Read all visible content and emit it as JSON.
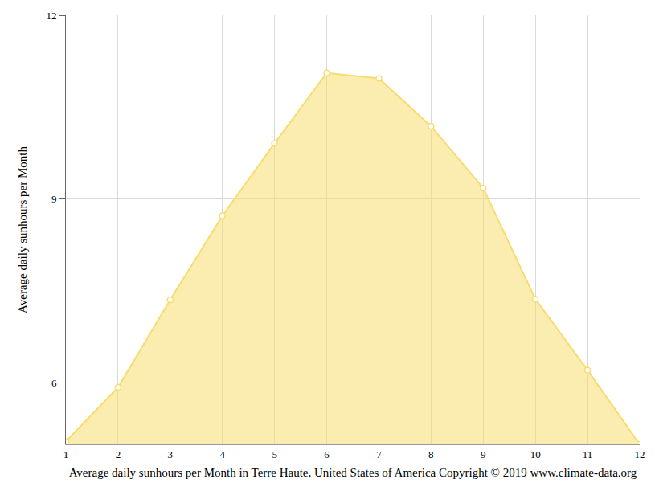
{
  "chart_data": {
    "type": "area",
    "x_label": "Average daily sunhours per Month in Terre Haute, United States of America Copyright © 2019 www.climate-data.org",
    "y_label": "Average daily sunhours per Month",
    "x": [
      1,
      2,
      3,
      4,
      5,
      6,
      7,
      8,
      9,
      10,
      11,
      12
    ],
    "values": [
      5.05,
      5.93,
      7.36,
      8.73,
      9.91,
      11.06,
      10.97,
      10.19,
      9.18,
      7.37,
      6.21,
      5.0
    ],
    "color": "#f7dc6f",
    "marker": "circle",
    "xlim": [
      1,
      12
    ],
    "xticks": [
      1,
      2,
      3,
      4,
      5,
      6,
      7,
      8,
      9,
      10,
      11,
      12
    ],
    "ylim": [
      5,
      12
    ],
    "yticks": [
      6,
      9,
      12
    ],
    "grid": true
  }
}
